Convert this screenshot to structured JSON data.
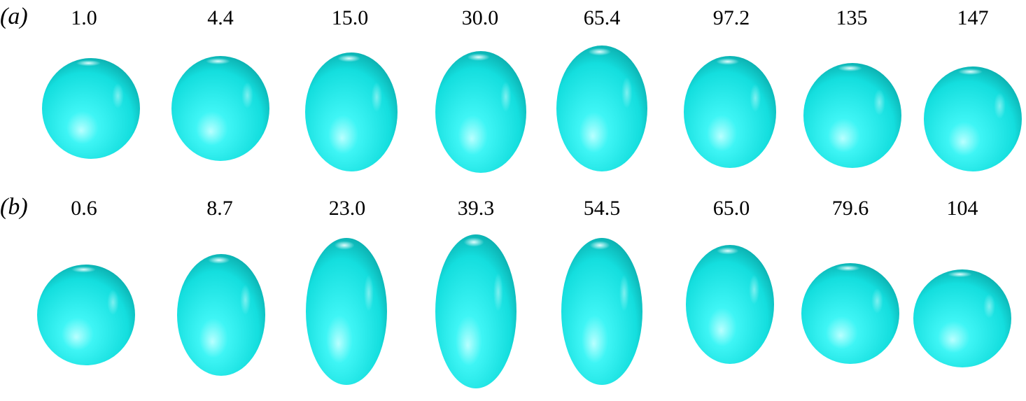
{
  "panels": [
    {
      "label": "(a)",
      "times": [
        "1.0",
        "4.4",
        "15.0",
        "30.0",
        "65.4",
        "97.2",
        "135",
        "147"
      ]
    },
    {
      "label": "(b)",
      "times": [
        "0.6",
        "8.7",
        "23.0",
        "39.3",
        "54.5",
        "65.0",
        "79.6",
        "104"
      ]
    }
  ]
}
